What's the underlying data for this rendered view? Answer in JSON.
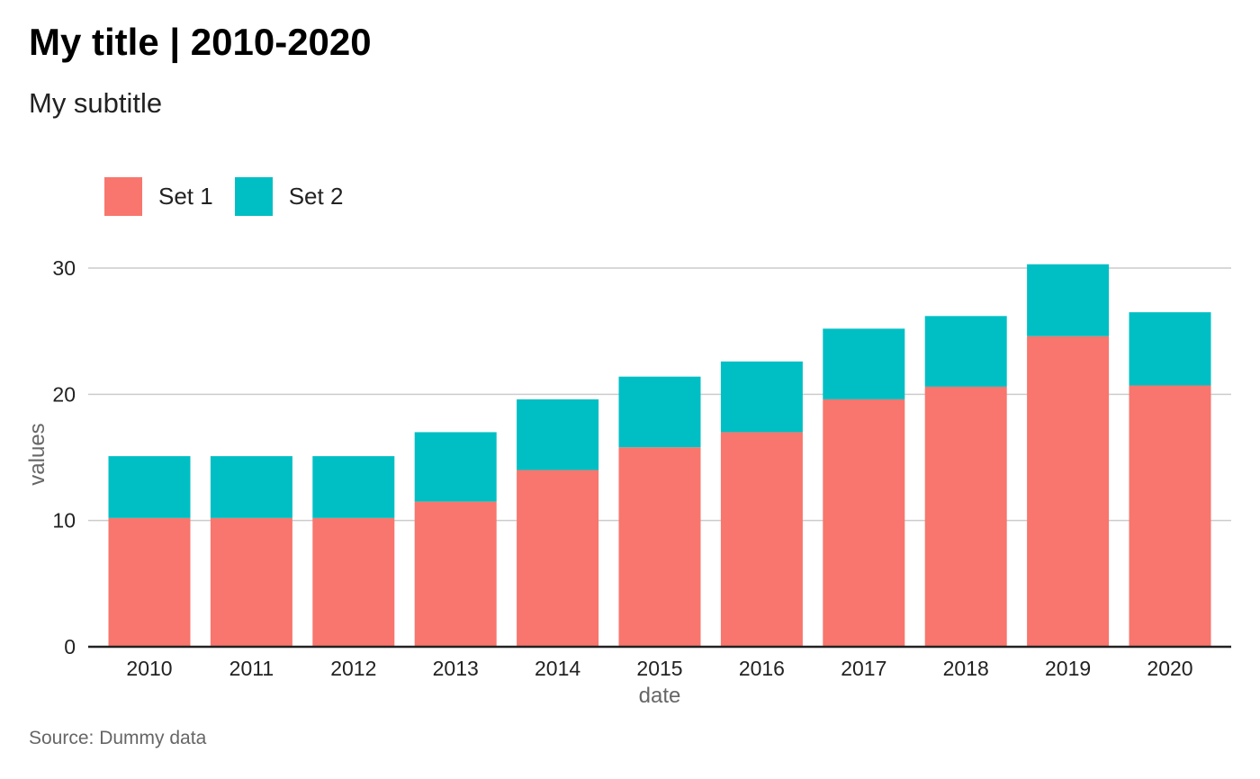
{
  "title": "My title | 2010-2020",
  "subtitle": "My subtitle",
  "source": "Source: Dummy data",
  "colors": {
    "set1": "#F8766D",
    "set2": "#00BFC4",
    "grid": "#cccccc",
    "axis": "#222222"
  },
  "chart_data": {
    "type": "bar",
    "stacked": true,
    "categories": [
      "2010",
      "2011",
      "2012",
      "2013",
      "2014",
      "2015",
      "2016",
      "2017",
      "2018",
      "2019",
      "2020"
    ],
    "series": [
      {
        "name": "Set 1",
        "color": "#F8766D",
        "values": [
          10.2,
          10.2,
          10.2,
          11.5,
          14.0,
          15.8,
          17.0,
          19.6,
          20.6,
          24.6,
          20.7
        ]
      },
      {
        "name": "Set 2",
        "color": "#00BFC4",
        "values": [
          4.9,
          4.9,
          4.9,
          5.5,
          5.6,
          5.6,
          5.6,
          5.6,
          5.6,
          5.7,
          5.8
        ]
      }
    ],
    "xlabel": "date",
    "ylabel": "values",
    "ylim": [
      0,
      30
    ],
    "yticks": [
      "0",
      "10",
      "20",
      "30"
    ],
    "grid": "horizontal",
    "legend_position": "top-left"
  }
}
